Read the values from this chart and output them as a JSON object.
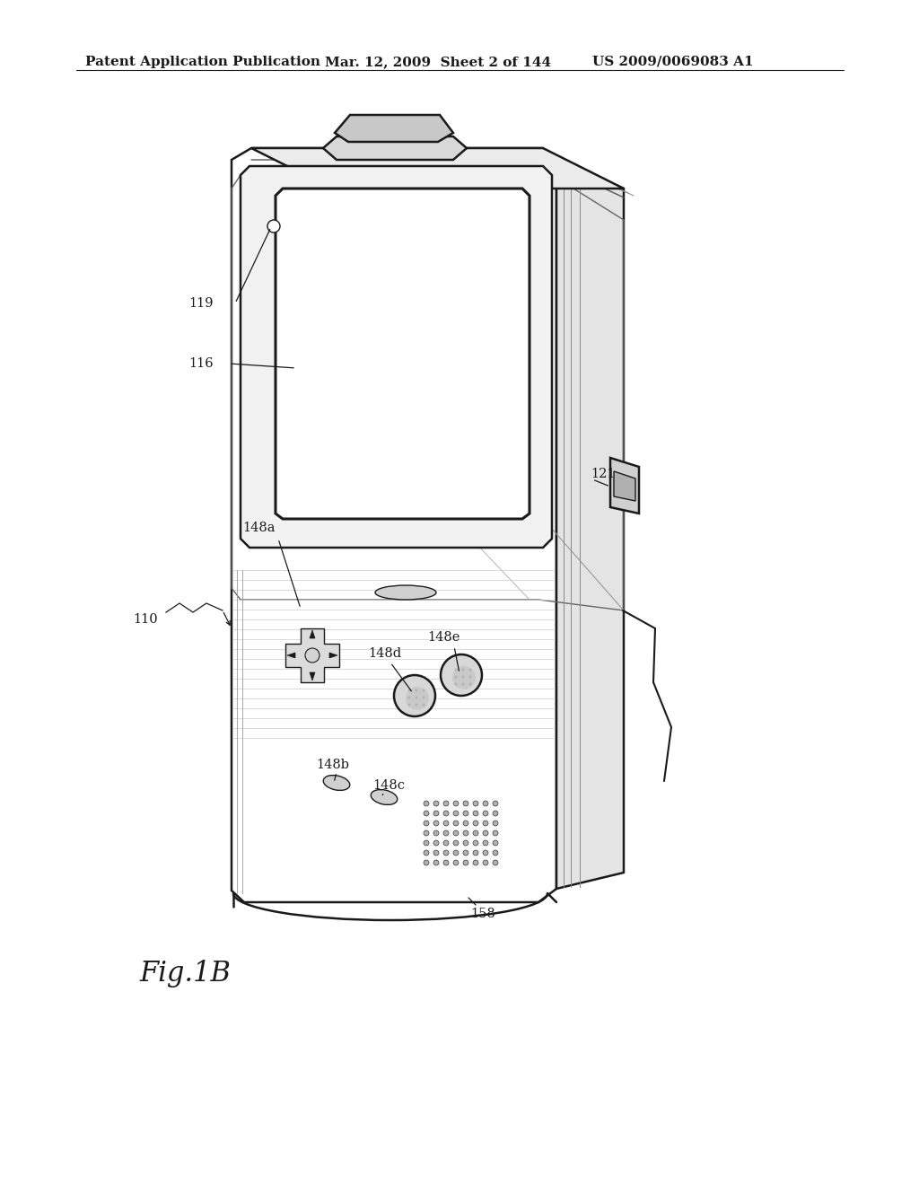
{
  "bg_color": "#ffffff",
  "line_color": "#1a1a1a",
  "header_left": "Patent Application Publication",
  "header_mid": "Mar. 12, 2009  Sheet 2 of 144",
  "header_right": "US 2009/0069083 A1",
  "fig_label": "Fig.1B",
  "lw_main": 1.8,
  "lw_thin": 1.0,
  "lw_thick": 2.2
}
